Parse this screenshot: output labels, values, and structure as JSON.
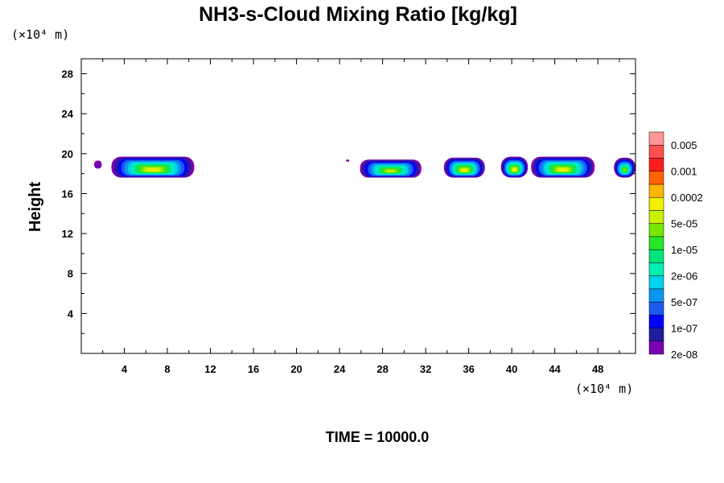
{
  "chart_data": {
    "type": "heatmap",
    "title": "NH3-s-Cloud Mixing Ratio [kg/kg]",
    "ylabel": "Height",
    "xlabel": "",
    "y_unit": "(×10⁴ m)",
    "x_unit": "(×10⁴ m)",
    "footer": "TIME = 10000.0",
    "xlim": [
      0,
      51.5
    ],
    "ylim": [
      0,
      29.5
    ],
    "x_ticks": [
      4,
      8,
      12,
      16,
      20,
      24,
      28,
      32,
      36,
      40,
      44,
      48
    ],
    "y_ticks": [
      4,
      8,
      12,
      16,
      20,
      24,
      28
    ],
    "colorbar": {
      "labels": [
        "0.005",
        "0.001",
        "0.0002",
        "5e-05",
        "1e-05",
        "2e-06",
        "5e-07",
        "1e-07",
        "2e-08"
      ],
      "colors": [
        "#7a00b4",
        "#1e1ea0",
        "#0000ff",
        "#1e5af0",
        "#0a96f0",
        "#00d2f0",
        "#00f0b4",
        "#00e678",
        "#28e628",
        "#78e600",
        "#c8f000",
        "#f0f000",
        "#ffb400",
        "#ff6400",
        "#ff1e1e",
        "#ff5050",
        "#ff9696"
      ]
    },
    "cloud_features": [
      {
        "x_start": 1.2,
        "x_end": 1.9,
        "top": 19.3,
        "bottom": 18.5,
        "peak_level": 0
      },
      {
        "x_start": 2.8,
        "x_end": 10.5,
        "top": 19.7,
        "bottom": 17.6,
        "peak_level": 11
      },
      {
        "x_start": 24.6,
        "x_end": 24.9,
        "top": 19.4,
        "bottom": 19.2,
        "peak_level": 0
      },
      {
        "x_start": 25.9,
        "x_end": 31.6,
        "top": 19.4,
        "bottom": 17.6,
        "peak_level": 10
      },
      {
        "x_start": 33.7,
        "x_end": 37.5,
        "top": 19.6,
        "bottom": 17.6,
        "peak_level": 11
      },
      {
        "x_start": 39.0,
        "x_end": 41.5,
        "top": 19.7,
        "bottom": 17.6,
        "peak_level": 11
      },
      {
        "x_start": 41.8,
        "x_end": 47.7,
        "top": 19.7,
        "bottom": 17.6,
        "peak_level": 11
      },
      {
        "x_start": 49.5,
        "x_end": 51.5,
        "top": 19.6,
        "bottom": 17.6,
        "peak_level": 9
      }
    ]
  }
}
